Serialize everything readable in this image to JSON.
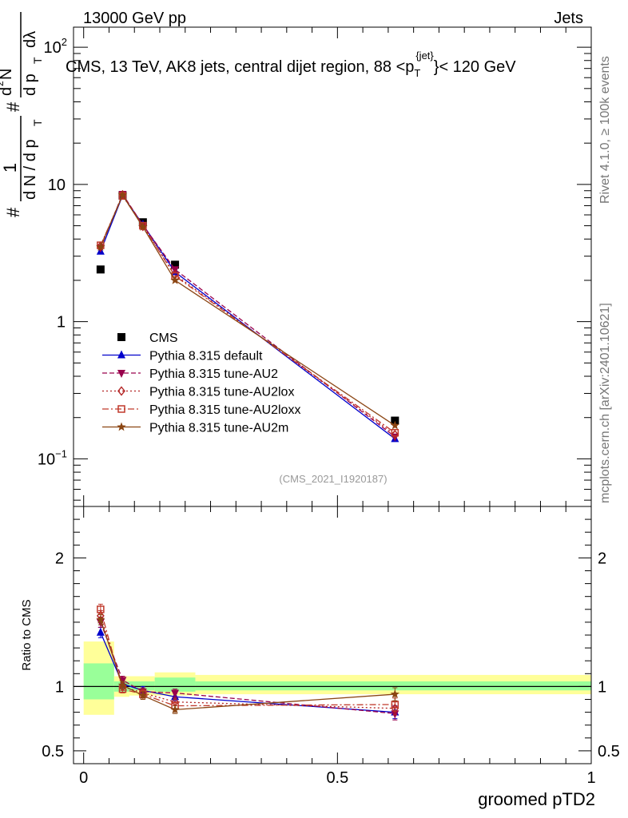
{
  "header": {
    "left": "13000 GeV pp",
    "right": "Jets"
  },
  "side_text": {
    "rivet": "Rivet 4.1.0, ≥ 100k events",
    "mcplots": "mcplots.cern.ch [arXiv:2401.10621]"
  },
  "colors": {
    "cms": "#000000",
    "default": "#0000cc",
    "au2": "#99004c",
    "au2lox": "#b22222",
    "au2loxx": "#c0392b",
    "au2m": "#8b4513",
    "band_outer": "#ffff99",
    "band_inner": "#99ff99"
  },
  "chart_data": [
    {
      "type": "line",
      "title": "CMS, 13 TeV, AK8 jets, central dijet region, 88 <p_T^{jet}> < 120 GeV",
      "title_parts": {
        "before": "CMS, 13 TeV, AK8 jets, central dijet region, 88 <p",
        "sub": "T",
        "sup": "{jet}",
        "after": "}< 120 GeV"
      },
      "ylabel_parts": [
        "#",
        "1",
        "d N / d p",
        "T",
        "#",
        "d",
        "2",
        "N",
        "d p",
        "T",
        "dλ"
      ],
      "yscale": "log",
      "ylim": [
        0.045,
        140
      ],
      "xlim": [
        -0.02,
        1.0
      ],
      "yticks": [
        {
          "value": 0.1,
          "label": "10",
          "sup": "−1"
        },
        {
          "value": 1,
          "label": "1",
          "sup": ""
        },
        {
          "value": 10,
          "label": "10",
          "sup": ""
        },
        {
          "value": 100,
          "label": "10",
          "sup": "2"
        }
      ],
      "watermark": "(CMS_2021_I1920187)",
      "x": [
        0.0333,
        0.0767,
        0.1167,
        0.18,
        0.6133
      ],
      "series": [
        {
          "key": "cms",
          "name": "CMS",
          "marker": "square",
          "style": "none",
          "values": [
            2.4,
            8.3,
            5.3,
            2.6,
            0.19
          ]
        },
        {
          "key": "default",
          "name": "Pythia 8.315 default",
          "marker": "triangle-up",
          "style": "solid",
          "values": [
            3.25,
            8.3,
            5.1,
            2.3,
            0.14
          ]
        },
        {
          "key": "au2",
          "name": "Pythia 8.315 tune-AU2",
          "marker": "triangle-down",
          "style": "dashed",
          "values": [
            3.45,
            8.5,
            5.05,
            2.4,
            0.145
          ]
        },
        {
          "key": "au2lox",
          "name": "Pythia 8.315 tune-AU2lox",
          "marker": "diamond",
          "style": "dotted",
          "values": [
            3.55,
            8.4,
            4.95,
            2.2,
            0.15
          ]
        },
        {
          "key": "au2loxx",
          "name": "Pythia 8.315 tune-AU2loxx",
          "marker": "open-square",
          "style": "dashdot",
          "values": [
            3.6,
            8.25,
            5.0,
            2.15,
            0.155
          ]
        },
        {
          "key": "au2m",
          "name": "Pythia 8.315 tune-AU2m",
          "marker": "star",
          "style": "solid",
          "values": [
            3.5,
            8.35,
            4.9,
            2.0,
            0.175
          ]
        }
      ]
    },
    {
      "type": "line",
      "title": "Ratio to CMS",
      "ylabel": "Ratio to CMS",
      "xlabel": "groomed pTD2",
      "ylim": [
        0.4,
        2.4
      ],
      "xlim": [
        -0.02,
        1.0
      ],
      "yticks": [
        {
          "value": 0.5,
          "label": "0.5"
        },
        {
          "value": 1,
          "label": "1"
        },
        {
          "value": 2,
          "label": "2"
        }
      ],
      "xticks": [
        {
          "value": 0,
          "label": "0"
        },
        {
          "value": 0.5,
          "label": "0.5"
        },
        {
          "value": 1,
          "label": "1"
        }
      ],
      "bands": [
        {
          "x0": 0.0,
          "x1": 0.06,
          "outer": [
            0.78,
            1.35
          ],
          "inner": [
            0.9,
            1.18
          ]
        },
        {
          "x0": 0.06,
          "x1": 0.09,
          "outer": [
            0.92,
            1.08
          ],
          "inner": [
            0.96,
            1.04
          ]
        },
        {
          "x0": 0.09,
          "x1": 0.14,
          "outer": [
            0.93,
            1.08
          ],
          "inner": [
            0.97,
            1.04
          ]
        },
        {
          "x0": 0.14,
          "x1": 0.22,
          "outer": [
            0.93,
            1.11
          ],
          "inner": [
            0.96,
            1.07
          ]
        },
        {
          "x0": 0.22,
          "x1": 1.0,
          "outer": [
            0.94,
            1.09
          ],
          "inner": [
            0.97,
            1.04
          ]
        }
      ],
      "x": [
        0.0333,
        0.0767,
        0.1167,
        0.18,
        0.6133
      ],
      "series": [
        {
          "key": "default",
          "name": "Pythia 8.315 default",
          "values": [
            1.42,
            1.02,
            0.97,
            0.92,
            0.8
          ],
          "errors": [
            0.04,
            0.03,
            0.03,
            0.03,
            0.05
          ]
        },
        {
          "key": "au2",
          "name": "Pythia 8.315 tune-AU2",
          "values": [
            1.5,
            1.05,
            0.96,
            0.95,
            0.79
          ],
          "errors": [
            0.04,
            0.03,
            0.03,
            0.03,
            0.05
          ]
        },
        {
          "key": "au2lox",
          "name": "Pythia 8.315 tune-AU2lox",
          "values": [
            1.55,
            1.0,
            0.95,
            0.88,
            0.83
          ],
          "errors": [
            0.04,
            0.03,
            0.03,
            0.03,
            0.05
          ]
        },
        {
          "key": "au2loxx",
          "name": "Pythia 8.315 tune-AU2loxx",
          "values": [
            1.6,
            0.98,
            0.94,
            0.85,
            0.86
          ],
          "errors": [
            0.04,
            0.03,
            0.03,
            0.03,
            0.05
          ]
        },
        {
          "key": "au2m",
          "name": "Pythia 8.315 tune-AU2m",
          "values": [
            1.52,
            1.01,
            0.93,
            0.82,
            0.94
          ],
          "errors": [
            0.04,
            0.03,
            0.03,
            0.03,
            0.05
          ]
        }
      ]
    }
  ]
}
